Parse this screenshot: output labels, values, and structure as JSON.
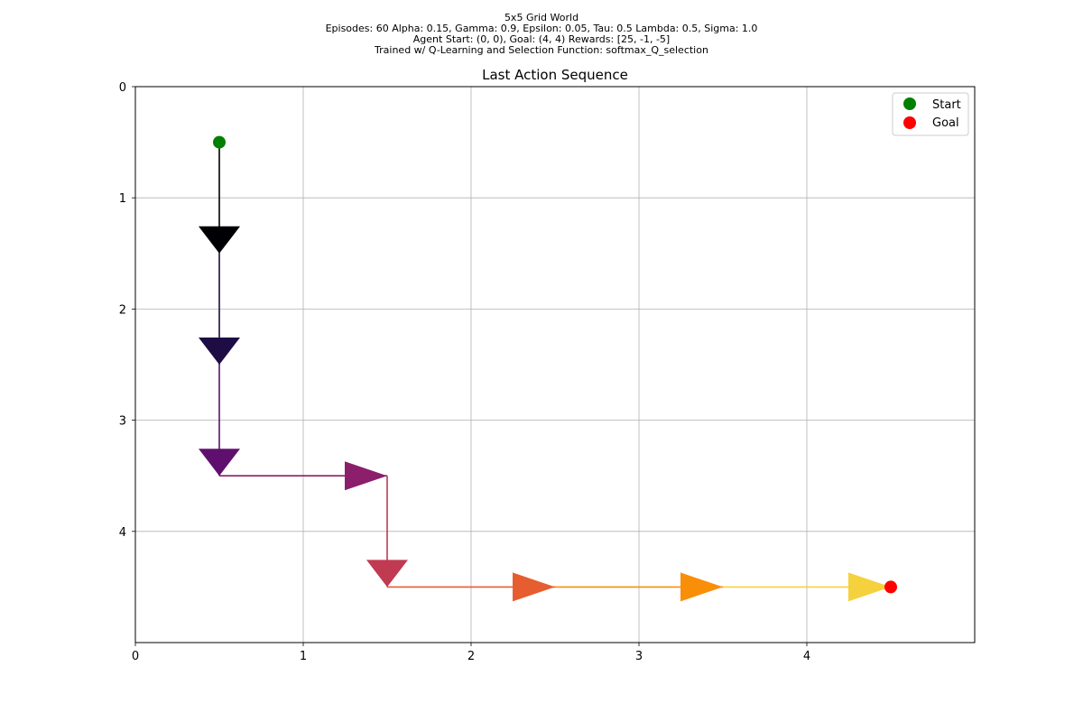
{
  "header": {
    "lines": [
      "5x5 Grid World",
      "Episodes: 60 Alpha: 0.15, Gamma: 0.9, Epsilon: 0.05, Tau: 0.5 Lambda: 0.5, Sigma: 1.0",
      "Agent Start: (0, 0), Goal: (4, 4) Rewards: [25, -1, -5]",
      "Trained w/ Q-Learning and Selection Function: softmax_Q_selection"
    ]
  },
  "chart_data": {
    "type": "line",
    "title": "Last Action Sequence",
    "xlabel": "",
    "ylabel": "",
    "xlim": [
      0,
      5
    ],
    "ylim": [
      5,
      0
    ],
    "y_inverted": true,
    "grid": true,
    "xticks": [
      "0",
      "1",
      "2",
      "3",
      "4"
    ],
    "yticks": [
      "0",
      "1",
      "2",
      "3",
      "4"
    ],
    "legend": {
      "placement": "top-right",
      "entries": [
        "Start",
        "Goal"
      ]
    },
    "start": {
      "label": "Start",
      "x": 0.5,
      "y": 0.5,
      "color": "#008000"
    },
    "goal": {
      "label": "Goal",
      "x": 4.5,
      "y": 4.5,
      "color": "#ff0000"
    },
    "path": [
      {
        "x": 0.5,
        "y": 0.5
      },
      {
        "x": 0.5,
        "y": 1.5
      },
      {
        "x": 0.5,
        "y": 2.5
      },
      {
        "x": 0.5,
        "y": 3.5
      },
      {
        "x": 1.5,
        "y": 3.5
      },
      {
        "x": 1.5,
        "y": 4.5
      },
      {
        "x": 2.5,
        "y": 4.5
      },
      {
        "x": 3.5,
        "y": 4.5
      },
      {
        "x": 4.5,
        "y": 4.5
      }
    ],
    "moves": [
      {
        "direction": "down",
        "color": "#000004"
      },
      {
        "direction": "down",
        "color": "#1e0c45"
      },
      {
        "direction": "down",
        "color": "#5f106e"
      },
      {
        "direction": "right",
        "color": "#8b1f6b"
      },
      {
        "direction": "down",
        "color": "#c03a51"
      },
      {
        "direction": "right",
        "color": "#e65d30"
      },
      {
        "direction": "right",
        "color": "#f98e09"
      },
      {
        "direction": "right",
        "color": "#f5d13d"
      }
    ]
  }
}
